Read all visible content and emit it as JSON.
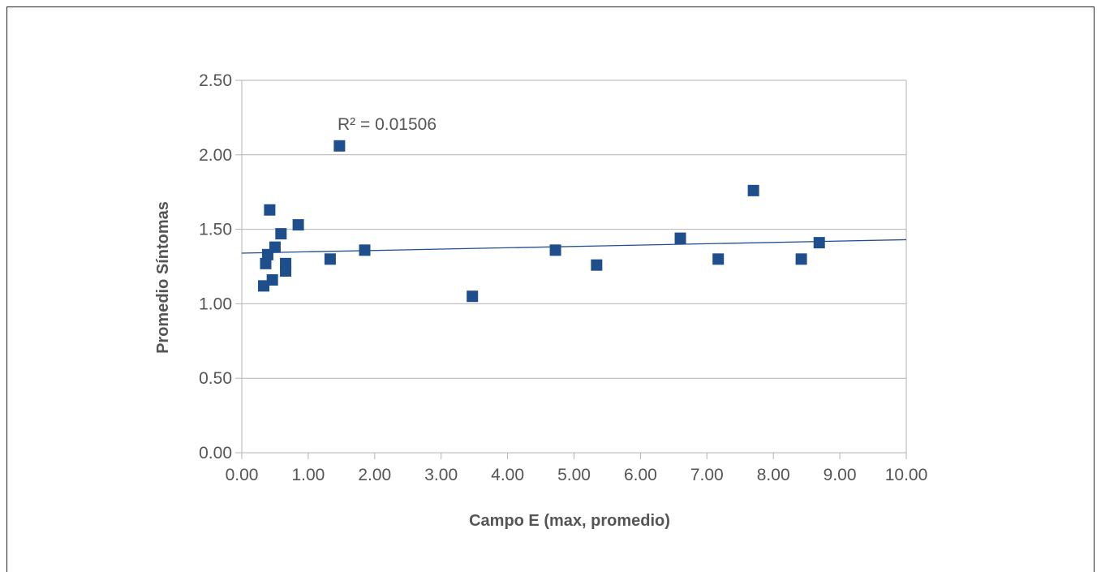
{
  "chart_data": {
    "type": "scatter",
    "title": "",
    "xlabel": "Campo E (max, promedio)",
    "ylabel": "Promedio Síntomas",
    "xlim": [
      0,
      10
    ],
    "ylim": [
      0,
      2.5
    ],
    "x_ticks": [
      "0.00",
      "1.00",
      "2.00",
      "3.00",
      "4.00",
      "5.00",
      "6.00",
      "7.00",
      "8.00",
      "9.00",
      "10.00"
    ],
    "y_ticks": [
      "0.00",
      "0.50",
      "1.00",
      "1.50",
      "2.00",
      "2.50"
    ],
    "grid": "horizontal",
    "marker_color": "#1f4e8c",
    "trendline_color": "#1f4e8c",
    "annotation": "R² = 0.01506",
    "trendline": {
      "x": [
        0,
        10
      ],
      "y": [
        1.34,
        1.43
      ]
    },
    "series": [
      {
        "points": [
          {
            "x": 0.33,
            "y": 1.12
          },
          {
            "x": 0.36,
            "y": 1.27
          },
          {
            "x": 0.39,
            "y": 1.33
          },
          {
            "x": 0.42,
            "y": 1.63
          },
          {
            "x": 0.46,
            "y": 1.16
          },
          {
            "x": 0.5,
            "y": 1.38
          },
          {
            "x": 0.59,
            "y": 1.47
          },
          {
            "x": 0.66,
            "y": 1.27
          },
          {
            "x": 0.66,
            "y": 1.22
          },
          {
            "x": 0.85,
            "y": 1.53
          },
          {
            "x": 1.33,
            "y": 1.3
          },
          {
            "x": 1.47,
            "y": 2.06
          },
          {
            "x": 1.85,
            "y": 1.36
          },
          {
            "x": 3.47,
            "y": 1.05
          },
          {
            "x": 4.72,
            "y": 1.36
          },
          {
            "x": 5.34,
            "y": 1.26
          },
          {
            "x": 6.6,
            "y": 1.44
          },
          {
            "x": 7.17,
            "y": 1.3
          },
          {
            "x": 7.7,
            "y": 1.76
          },
          {
            "x": 8.42,
            "y": 1.3
          },
          {
            "x": 8.69,
            "y": 1.41
          }
        ]
      }
    ]
  }
}
